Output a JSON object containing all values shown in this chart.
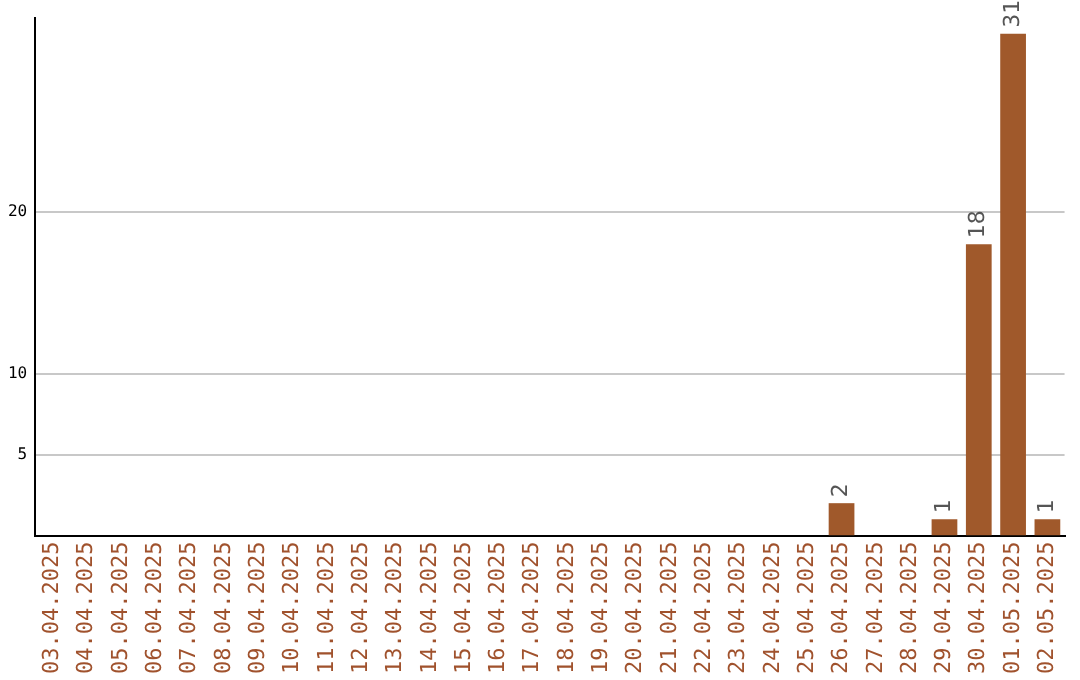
{
  "chart_data": {
    "type": "bar",
    "categories": [
      "03.04.2025",
      "04.04.2025",
      "05.04.2025",
      "06.04.2025",
      "07.04.2025",
      "08.04.2025",
      "09.04.2025",
      "10.04.2025",
      "11.04.2025",
      "12.04.2025",
      "13.04.2025",
      "14.04.2025",
      "15.04.2025",
      "16.04.2025",
      "17.04.2025",
      "18.04.2025",
      "19.04.2025",
      "20.04.2025",
      "21.04.2025",
      "22.04.2025",
      "23.04.2025",
      "24.04.2025",
      "25.04.2025",
      "26.04.2025",
      "27.04.2025",
      "28.04.2025",
      "29.04.2025",
      "30.04.2025",
      "01.05.2025",
      "02.05.2025"
    ],
    "values": [
      0,
      0,
      0,
      0,
      0,
      0,
      0,
      0,
      0,
      0,
      0,
      0,
      0,
      0,
      0,
      0,
      0,
      0,
      0,
      0,
      0,
      0,
      0,
      2,
      0,
      0,
      1,
      18,
      31,
      1
    ],
    "value_labels": [
      null,
      null,
      null,
      null,
      null,
      null,
      null,
      null,
      null,
      null,
      null,
      null,
      null,
      null,
      null,
      null,
      null,
      null,
      null,
      null,
      null,
      null,
      null,
      "2",
      null,
      null,
      "1",
      "18",
      "31",
      "1"
    ],
    "color": "#a0592b",
    "ylim": [
      0,
      32
    ],
    "yticks": [
      5,
      10,
      20
    ],
    "grid": "y"
  }
}
